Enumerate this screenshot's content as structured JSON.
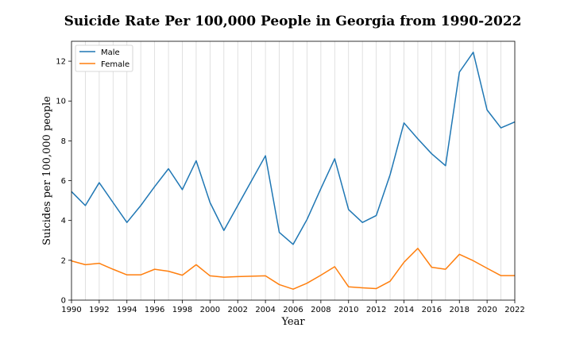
{
  "chart_data": {
    "type": "line",
    "title": "Suicide Rate Per 100,000 People in Georgia from 1990-2022",
    "xlabel": "Year",
    "ylabel": "Suicides per 100,000 people",
    "xlim": [
      1990,
      2022
    ],
    "ylim": [
      0,
      13
    ],
    "xticks": [
      1990,
      1992,
      1994,
      1996,
      1998,
      2000,
      2002,
      2004,
      2006,
      2008,
      2010,
      2012,
      2014,
      2016,
      2018,
      2020,
      2022
    ],
    "yticks": [
      0,
      2,
      4,
      6,
      8,
      10,
      12
    ],
    "grid": "vertical",
    "legend_position": "upper-left",
    "x": [
      1990,
      1991,
      1992,
      1993,
      1994,
      1995,
      1996,
      1997,
      1998,
      1999,
      2000,
      2001,
      2002,
      2003,
      2004,
      2005,
      2006,
      2007,
      2008,
      2009,
      2010,
      2011,
      2012,
      2013,
      2014,
      2015,
      2016,
      2017,
      2018,
      2019,
      2020,
      2021,
      2022
    ],
    "series": [
      {
        "name": "Male",
        "color": "#1f77b4",
        "values": [
          5.45,
          4.75,
          5.9,
          4.9,
          3.9,
          4.75,
          5.7,
          6.6,
          5.55,
          7.0,
          4.9,
          3.5,
          4.75,
          6.0,
          7.25,
          3.4,
          2.8,
          4.05,
          5.6,
          7.1,
          4.55,
          3.9,
          4.25,
          6.3,
          8.9,
          8.1,
          7.35,
          6.75,
          11.45,
          12.45,
          9.55,
          8.65,
          8.95
        ]
      },
      {
        "name": "Female",
        "color": "#ff7f0e",
        "values": [
          1.97,
          1.78,
          1.85,
          1.55,
          1.27,
          1.27,
          1.55,
          1.45,
          1.25,
          1.78,
          1.22,
          1.15,
          1.18,
          1.2,
          1.22,
          0.78,
          0.55,
          0.85,
          1.25,
          1.68,
          0.67,
          0.62,
          0.58,
          0.95,
          1.9,
          2.6,
          1.65,
          1.55,
          2.3,
          1.98,
          1.6,
          1.23,
          1.23
        ]
      }
    ]
  }
}
